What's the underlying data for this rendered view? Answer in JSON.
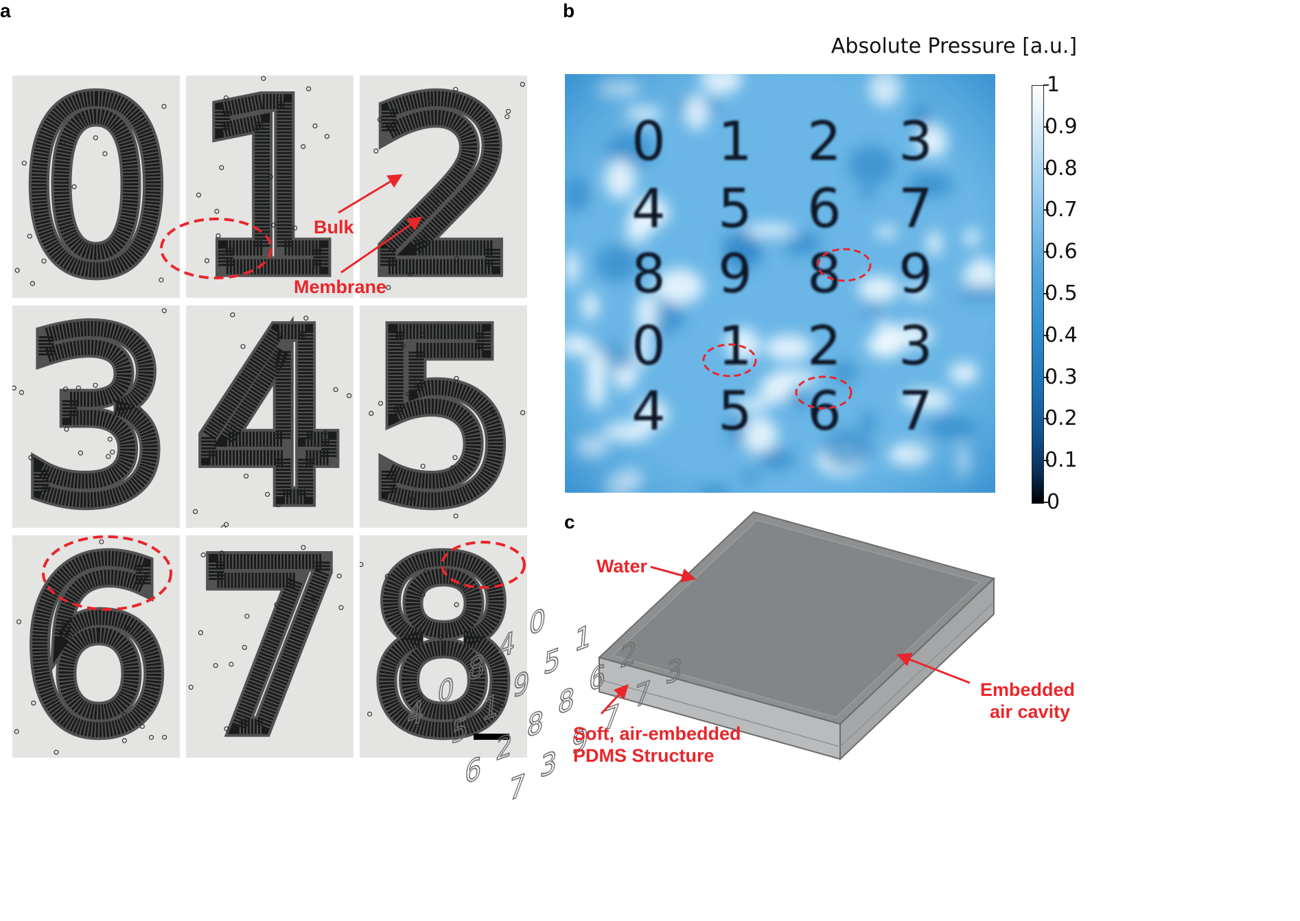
{
  "panels": {
    "a": "a",
    "b": "b",
    "c": "c"
  },
  "panel_a": {
    "digits": [
      "0",
      "1",
      "2",
      "3",
      "4",
      "5",
      "6",
      "7",
      "8"
    ],
    "labels": {
      "bulk": "Bulk",
      "membrane": "Membrane"
    },
    "annotation_color": "#e8262b"
  },
  "panel_b": {
    "title": "Absolute Pressure [a.u.]",
    "grid": [
      [
        "0",
        "1",
        "2",
        "3"
      ],
      [
        "4",
        "5",
        "6",
        "7"
      ],
      [
        "8",
        "9",
        "8",
        "9"
      ],
      [
        "0",
        "1",
        "2",
        "3"
      ],
      [
        "4",
        "5",
        "6",
        "7"
      ]
    ],
    "colorbar": {
      "ticks": [
        "1",
        "0.9",
        "0.8",
        "0.7",
        "0.6",
        "0.5",
        "0.4",
        "0.3",
        "0.2",
        "0.1",
        "0"
      ],
      "range": [
        0,
        1
      ],
      "colors": {
        "low": "#000000",
        "mid": "#2f8fd0",
        "high": "#ffffff"
      }
    }
  },
  "panel_c": {
    "labels": {
      "water": "Water",
      "embedded_1": "Embedded",
      "embedded_2": "air cavity",
      "soft_1": "Soft, air-embedded",
      "soft_2": "PDMS Structure"
    },
    "grid": [
      [
        "0",
        "1",
        "2",
        "3"
      ],
      [
        "4",
        "5",
        "6",
        "7"
      ],
      [
        "8",
        "9",
        "8",
        "7"
      ],
      [
        "0",
        "1",
        "8",
        "9"
      ],
      [
        "4",
        "5",
        "2",
        "3"
      ],
      [
        "",
        "",
        "6",
        "7"
      ]
    ]
  }
}
